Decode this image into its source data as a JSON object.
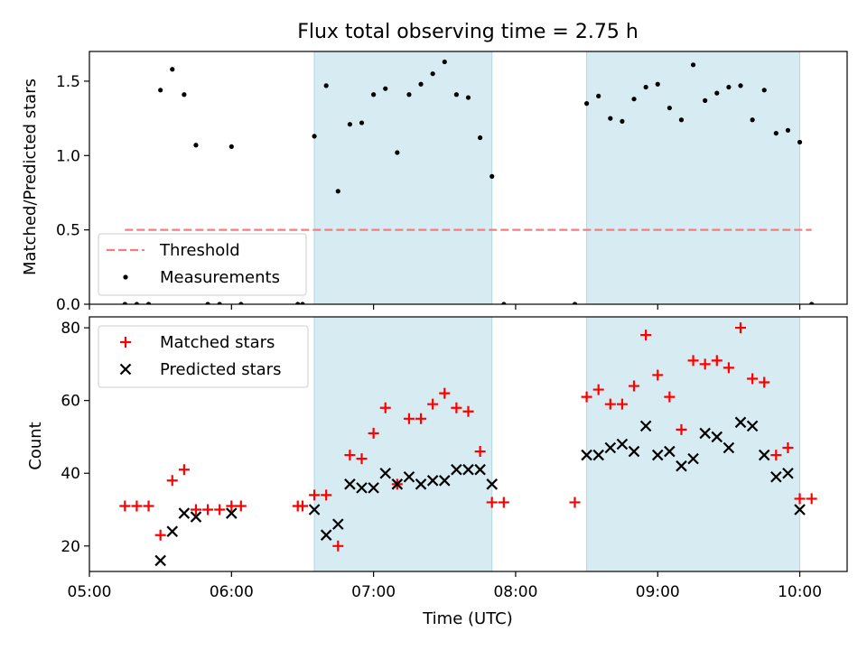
{
  "chart_data": [
    {
      "type": "scatter",
      "title": "Flux total observing time = 2.75 h",
      "ylabel": "Matched/Predicted stars",
      "ylim": [
        0,
        1.7
      ],
      "xlim": [
        "05:00",
        "10:20"
      ],
      "yticks": [
        "0.0",
        "0.5",
        "1.0",
        "1.5"
      ],
      "shaded_ranges": [
        [
          "06:35",
          "07:50"
        ],
        [
          "08:30",
          "10:00"
        ]
      ],
      "threshold": {
        "name": "Threshold",
        "value": 0.5,
        "x_range": [
          "05:15",
          "10:05"
        ],
        "color": "#f08080"
      },
      "legend": {
        "placement": "lower-left",
        "entries": [
          "Threshold",
          "Measurements"
        ]
      },
      "series": [
        {
          "name": "Measurements",
          "color": "#000000",
          "x": [
            "05:15",
            "05:20",
            "05:25",
            "05:30",
            "05:35",
            "05:40",
            "05:45",
            "05:50",
            "05:55",
            "06:00",
            "06:04",
            "06:28",
            "06:30",
            "06:35",
            "06:40",
            "06:45",
            "06:50",
            "06:55",
            "07:00",
            "07:05",
            "07:10",
            "07:15",
            "07:20",
            "07:25",
            "07:30",
            "07:35",
            "07:40",
            "07:45",
            "07:50",
            "07:55",
            "08:25",
            "08:30",
            "08:35",
            "08:40",
            "08:45",
            "08:50",
            "08:55",
            "09:00",
            "09:05",
            "09:10",
            "09:15",
            "09:20",
            "09:25",
            "09:30",
            "09:35",
            "09:40",
            "09:45",
            "09:50",
            "09:55",
            "10:00",
            "10:05"
          ],
          "y": [
            0,
            0,
            0,
            1.44,
            1.58,
            1.41,
            1.07,
            0,
            0,
            1.06,
            0,
            0,
            0,
            1.13,
            1.47,
            0.76,
            1.21,
            1.22,
            1.41,
            1.45,
            1.02,
            1.41,
            1.48,
            1.55,
            1.63,
            1.41,
            1.39,
            1.12,
            0.86,
            0,
            0,
            1.35,
            1.4,
            1.25,
            1.23,
            1.38,
            1.46,
            1.48,
            1.32,
            1.24,
            1.61,
            1.37,
            1.42,
            1.46,
            1.47,
            1.24,
            1.44,
            1.15,
            1.17,
            1.09,
            0
          ]
        }
      ]
    },
    {
      "type": "scatter",
      "xlabel": "Time (UTC)",
      "ylabel": "Count",
      "ylim": [
        13,
        83
      ],
      "xlim": [
        "05:00",
        "10:20"
      ],
      "yticks": [
        "20",
        "40",
        "60",
        "80"
      ],
      "xticks": [
        "05:00",
        "06:00",
        "07:00",
        "08:00",
        "09:00",
        "10:00"
      ],
      "shaded_ranges": [
        [
          "06:35",
          "07:50"
        ],
        [
          "08:30",
          "10:00"
        ]
      ],
      "legend": {
        "placement": "upper-left",
        "entries": [
          "Matched stars",
          "Predicted stars"
        ]
      },
      "series": [
        {
          "name": "Matched stars",
          "marker": "plus",
          "color": "#ff0000",
          "x": [
            "05:15",
            "05:20",
            "05:25",
            "05:30",
            "05:35",
            "05:40",
            "05:45",
            "05:50",
            "05:55",
            "06:00",
            "06:04",
            "06:28",
            "06:30",
            "06:35",
            "06:40",
            "06:45",
            "06:50",
            "06:55",
            "07:00",
            "07:05",
            "07:10",
            "07:15",
            "07:20",
            "07:25",
            "07:30",
            "07:35",
            "07:40",
            "07:45",
            "07:50",
            "07:55",
            "08:25",
            "08:30",
            "08:35",
            "08:40",
            "08:45",
            "08:50",
            "08:55",
            "09:00",
            "09:05",
            "09:10",
            "09:15",
            "09:20",
            "09:25",
            "09:30",
            "09:35",
            "09:40",
            "09:45",
            "09:50",
            "09:55",
            "10:00",
            "10:05"
          ],
          "y": [
            31,
            31,
            31,
            23,
            38,
            41,
            30,
            30,
            30,
            31,
            31,
            31,
            31,
            34,
            34,
            20,
            45,
            44,
            51,
            58,
            37,
            55,
            55,
            59,
            62,
            58,
            57,
            46,
            32,
            32,
            32,
            61,
            63,
            59,
            59,
            64,
            78,
            67,
            61,
            52,
            71,
            70,
            71,
            69,
            80,
            66,
            65,
            45,
            47,
            33,
            33
          ]
        },
        {
          "name": "Predicted stars",
          "marker": "x",
          "color": "#000000",
          "x": [
            "05:30",
            "05:35",
            "05:40",
            "05:45",
            "06:00",
            "06:35",
            "06:40",
            "06:45",
            "06:50",
            "06:55",
            "07:00",
            "07:05",
            "07:10",
            "07:15",
            "07:20",
            "07:25",
            "07:30",
            "07:35",
            "07:40",
            "07:45",
            "07:50",
            "08:30",
            "08:35",
            "08:40",
            "08:45",
            "08:50",
            "08:55",
            "09:00",
            "09:05",
            "09:10",
            "09:15",
            "09:20",
            "09:25",
            "09:30",
            "09:35",
            "09:40",
            "09:45",
            "09:50",
            "09:55",
            "10:00"
          ],
          "y": [
            16,
            24,
            29,
            28,
            29,
            30,
            23,
            26,
            37,
            36,
            36,
            40,
            37,
            39,
            37,
            38,
            38,
            41,
            41,
            41,
            37,
            45,
            45,
            47,
            48,
            46,
            53,
            45,
            46,
            42,
            44,
            51,
            50,
            47,
            54,
            53,
            45,
            39,
            40,
            30
          ]
        }
      ]
    }
  ]
}
